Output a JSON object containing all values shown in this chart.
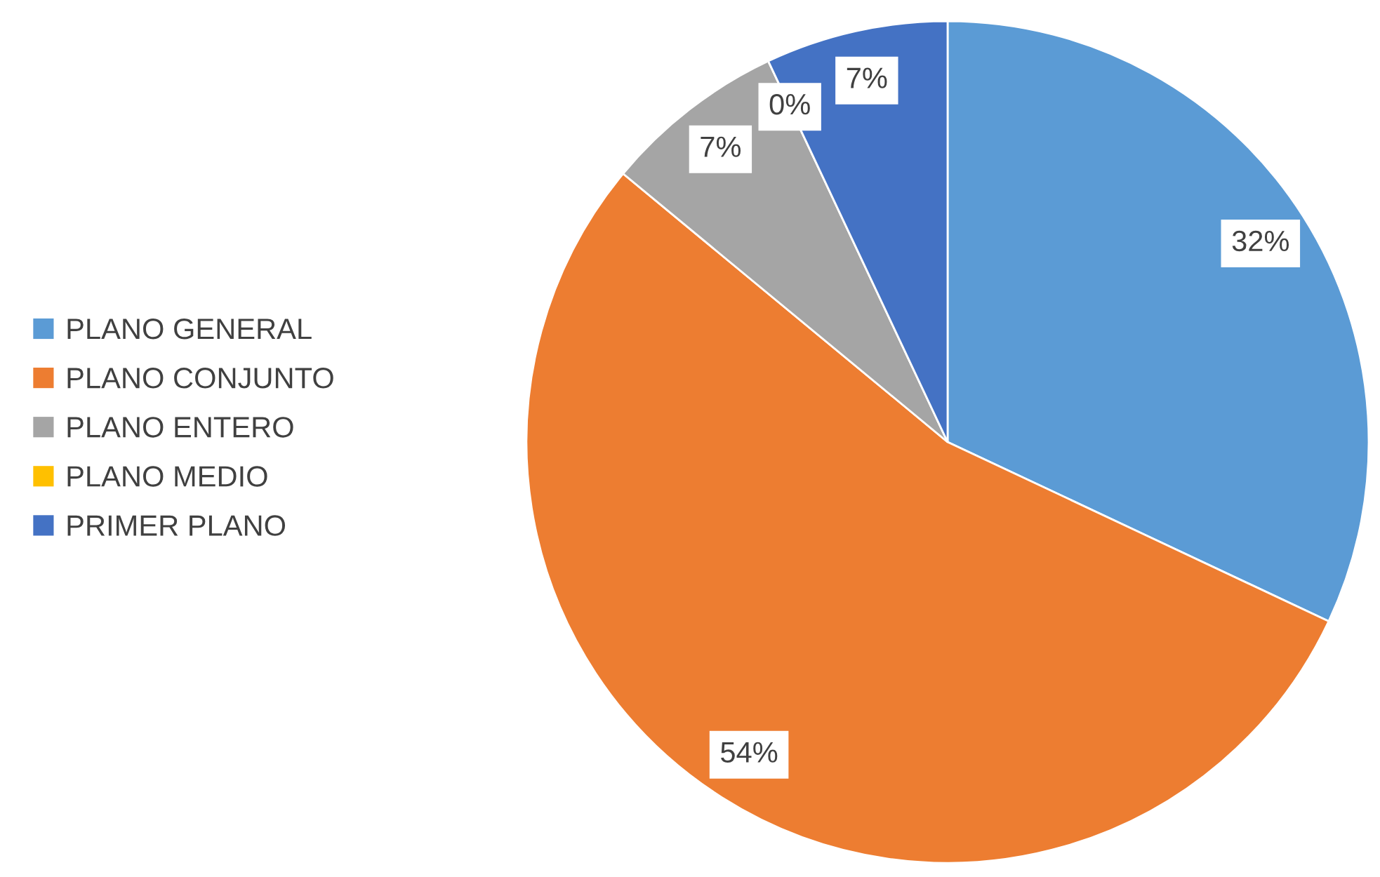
{
  "chart_data": {
    "type": "pie",
    "categories": [
      "PLANO GENERAL",
      "PLANO CONJUNTO",
      "PLANO ENTERO",
      "PLANO MEDIO",
      "PRIMER PLANO"
    ],
    "values": [
      32,
      54,
      7,
      0,
      7
    ],
    "colors": [
      "#5b9bd5",
      "#ed7d31",
      "#a5a5a5",
      "#ffc000",
      "#4472c4"
    ],
    "value_labels": [
      "32%",
      "54%",
      "7%",
      "0%",
      "7%"
    ],
    "legend": "left"
  }
}
